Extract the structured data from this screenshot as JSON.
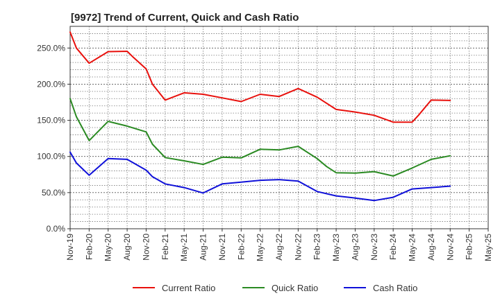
{
  "chart_data": {
    "type": "line",
    "title": "[9972]  Trend of Current, Quick and Cash Ratio",
    "xlabel": "",
    "ylabel": "",
    "ylim": [
      0,
      280
    ],
    "yticks": [
      0,
      50,
      100,
      150,
      200,
      250
    ],
    "ytick_labels": [
      "0.0%",
      "50.0%",
      "100.0%",
      "150.0%",
      "200.0%",
      "250.0%"
    ],
    "x": [
      "Nov-19",
      "Feb-20",
      "May-20",
      "Aug-20",
      "Nov-20",
      "Feb-21",
      "May-21",
      "Aug-21",
      "Nov-21",
      "Feb-22",
      "May-22",
      "Aug-22",
      "Nov-22",
      "Feb-23",
      "May-23",
      "Aug-23",
      "Nov-23",
      "Feb-24",
      "May-24",
      "Aug-24",
      "Nov-24",
      "Feb-25",
      "May-25"
    ],
    "grid": true,
    "legend_position": "bottom",
    "series": [
      {
        "name": "Current Ratio",
        "color": "#e8100c",
        "points": [
          [
            0,
            272
          ],
          [
            0.33,
            250
          ],
          [
            1,
            229
          ],
          [
            2,
            245
          ],
          [
            3,
            245.5
          ],
          [
            3.33,
            237
          ],
          [
            4,
            221
          ],
          [
            4.33,
            200
          ],
          [
            5,
            178
          ],
          [
            6,
            188
          ],
          [
            7,
            186
          ],
          [
            8,
            181
          ],
          [
            9,
            176
          ],
          [
            10,
            186
          ],
          [
            11,
            183
          ],
          [
            12,
            194
          ],
          [
            13,
            182
          ],
          [
            14,
            165
          ],
          [
            15,
            161.5
          ],
          [
            16,
            157
          ],
          [
            17,
            147.5
          ],
          [
            18,
            147.5
          ],
          [
            18.33,
            157
          ],
          [
            19,
            178
          ],
          [
            20,
            177.5
          ]
        ]
      },
      {
        "name": "Quick Ratio",
        "color": "#2a8a22",
        "points": [
          [
            0,
            180
          ],
          [
            0.33,
            155
          ],
          [
            1,
            122
          ],
          [
            2,
            148.5
          ],
          [
            3,
            142
          ],
          [
            4,
            134
          ],
          [
            4.33,
            117
          ],
          [
            5,
            98.5
          ],
          [
            6,
            94
          ],
          [
            7,
            89
          ],
          [
            8,
            99
          ],
          [
            9,
            98
          ],
          [
            10,
            110
          ],
          [
            11,
            109
          ],
          [
            12,
            114
          ],
          [
            13,
            97
          ],
          [
            13.5,
            86
          ],
          [
            14,
            77.5
          ],
          [
            15,
            77
          ],
          [
            16,
            79
          ],
          [
            17,
            73
          ],
          [
            18,
            84
          ],
          [
            19,
            96
          ],
          [
            20,
            101
          ]
        ]
      },
      {
        "name": "Cash Ratio",
        "color": "#0f10d9",
        "points": [
          [
            0,
            106
          ],
          [
            0.33,
            91
          ],
          [
            1,
            74
          ],
          [
            2,
            97
          ],
          [
            3,
            96
          ],
          [
            4,
            81
          ],
          [
            4.33,
            72
          ],
          [
            5,
            62
          ],
          [
            6,
            57
          ],
          [
            7,
            49.5
          ],
          [
            8,
            62
          ],
          [
            9,
            64.5
          ],
          [
            10,
            67
          ],
          [
            11,
            68
          ],
          [
            12,
            66
          ],
          [
            13,
            51.5
          ],
          [
            14,
            45.5
          ],
          [
            15,
            42.5
          ],
          [
            16,
            39
          ],
          [
            17,
            43.5
          ],
          [
            18,
            55
          ],
          [
            19,
            57
          ],
          [
            20,
            59
          ]
        ]
      }
    ]
  }
}
